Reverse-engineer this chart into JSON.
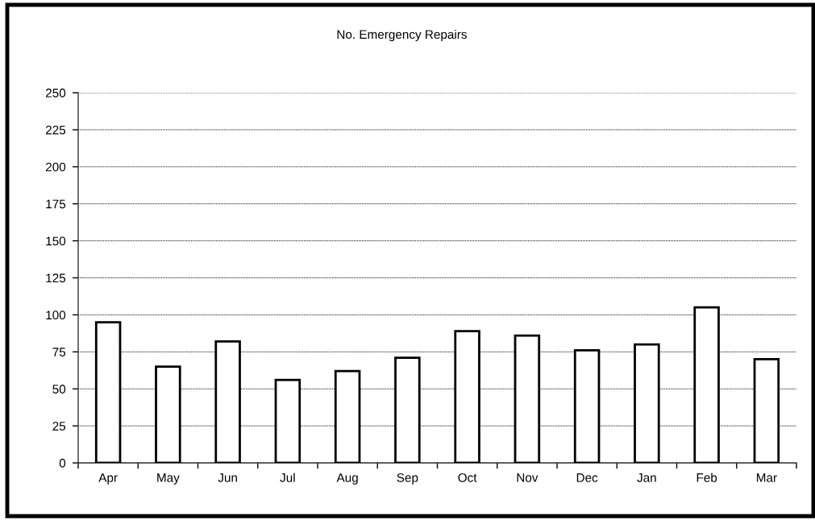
{
  "chart_data": {
    "type": "bar",
    "title": "No. Emergency Repairs",
    "categories": [
      "Apr",
      "May",
      "Jun",
      "Jul",
      "Aug",
      "Sep",
      "Oct",
      "Nov",
      "Dec",
      "Jan",
      "Feb",
      "Mar"
    ],
    "values": [
      95,
      65,
      82,
      56,
      62,
      71,
      89,
      86,
      76,
      80,
      105,
      70
    ],
    "color": "#ffffff",
    "ylim": [
      0,
      250
    ],
    "yticks": [
      0,
      25,
      50,
      75,
      100,
      125,
      150,
      175,
      200,
      225,
      250
    ],
    "grid": "y"
  }
}
